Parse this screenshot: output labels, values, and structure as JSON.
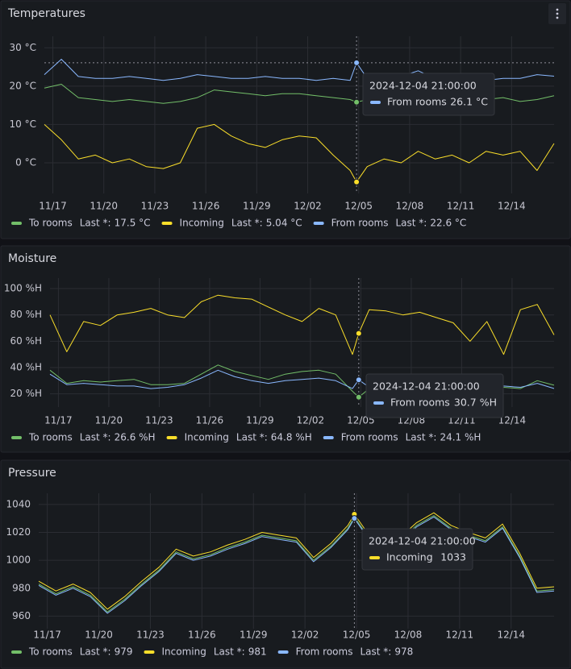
{
  "chart_data": [
    {
      "type": "line",
      "title": "Temperatures",
      "legend_calc": "Last *:",
      "grid": true,
      "x": [
        "2024-11-16 12:00:00",
        "2024-11-17 12:00:00",
        "2024-11-18 12:00:00",
        "2024-11-19 12:00:00",
        "2024-11-20 12:00:00",
        "2024-11-21 12:00:00",
        "2024-11-22 12:00:00",
        "2024-11-23 12:00:00",
        "2024-11-24 12:00:00",
        "2024-11-25 12:00:00",
        "2024-11-26 12:00:00",
        "2024-11-27 12:00:00",
        "2024-11-28 12:00:00",
        "2024-11-29 12:00:00",
        "2024-11-30 12:00:00",
        "2024-12-01 12:00:00",
        "2024-12-02 12:00:00",
        "2024-12-03 12:00:00",
        "2024-12-04 12:00:00",
        "2024-12-04 21:00:00",
        "2024-12-05 12:00:00",
        "2024-12-06 12:00:00",
        "2024-12-07 12:00:00",
        "2024-12-08 12:00:00",
        "2024-12-09 12:00:00",
        "2024-12-10 12:00:00",
        "2024-12-11 12:00:00",
        "2024-12-12 12:00:00",
        "2024-12-13 12:00:00",
        "2024-12-14 12:00:00",
        "2024-12-15 12:00:00",
        "2024-12-16 12:00:00"
      ],
      "xlim": [
        "2024-11-16 12:00:00",
        "2024-12-16 12:00:00"
      ],
      "xticks": [
        {
          "value": "2024-11-17 00:00:00",
          "label": "11/17"
        },
        {
          "value": "2024-11-20 00:00:00",
          "label": "11/20"
        },
        {
          "value": "2024-11-23 00:00:00",
          "label": "11/23"
        },
        {
          "value": "2024-11-26 00:00:00",
          "label": "11/26"
        },
        {
          "value": "2024-11-29 00:00:00",
          "label": "11/29"
        },
        {
          "value": "2024-12-02 00:00:00",
          "label": "12/02"
        },
        {
          "value": "2024-12-05 00:00:00",
          "label": "12/05"
        },
        {
          "value": "2024-12-08 00:00:00",
          "label": "12/08"
        },
        {
          "value": "2024-12-11 00:00:00",
          "label": "12/11"
        },
        {
          "value": "2024-12-14 00:00:00",
          "label": "12/14"
        }
      ],
      "ylim": [
        -8,
        33
      ],
      "yticks": [
        {
          "value": 0,
          "label": "0 °C"
        },
        {
          "value": 10,
          "label": "10 °C"
        },
        {
          "value": 20,
          "label": "20 °C"
        },
        {
          "value": 30,
          "label": "30 °C"
        }
      ],
      "series": [
        {
          "name": "To rooms",
          "color": "#73bf69",
          "last_label": "17.5 °C",
          "values": [
            19.5,
            20.5,
            17,
            16.5,
            16,
            16.5,
            16,
            15.5,
            16,
            17,
            19,
            18.5,
            18,
            17.5,
            18,
            18,
            17.5,
            17,
            16.5,
            15.8,
            16.5,
            16,
            16.5,
            17,
            16,
            16.5,
            17,
            16.5,
            17,
            16,
            16.5,
            17.5
          ]
        },
        {
          "name": "Incoming",
          "color": "#fade2a",
          "last_label": "5.04 °C",
          "values": [
            10,
            6,
            1,
            2,
            0,
            1,
            -1,
            -1.5,
            0,
            9,
            10,
            7,
            5,
            4,
            6,
            7,
            6.5,
            2,
            -2,
            -5,
            -1,
            1,
            0,
            3,
            1,
            2,
            0,
            3,
            2,
            3,
            -2,
            5.04
          ]
        },
        {
          "name": "From rooms",
          "color": "#8ab8ff",
          "last_label": "22.6 °C",
          "values": [
            23,
            27,
            22.5,
            22,
            22,
            22.5,
            22,
            21.5,
            22,
            23,
            22.5,
            22,
            22,
            22.5,
            22,
            22,
            21.5,
            22,
            21.5,
            26.1,
            22,
            22,
            22.5,
            24,
            22,
            22,
            22,
            21.5,
            22,
            22,
            23,
            22.6
          ]
        }
      ],
      "tooltip": {
        "x": "2024-12-04 21:00:00",
        "series": "From rooms",
        "value_label": "26.1 °C"
      }
    },
    {
      "type": "line",
      "title": "Moisture",
      "legend_calc": "Last *:",
      "grid": true,
      "x": [
        "2024-11-16 12:00:00",
        "2024-11-17 12:00:00",
        "2024-11-18 12:00:00",
        "2024-11-19 12:00:00",
        "2024-11-20 12:00:00",
        "2024-11-21 12:00:00",
        "2024-11-22 12:00:00",
        "2024-11-23 12:00:00",
        "2024-11-24 12:00:00",
        "2024-11-25 12:00:00",
        "2024-11-26 12:00:00",
        "2024-11-27 12:00:00",
        "2024-11-28 12:00:00",
        "2024-11-29 12:00:00",
        "2024-11-30 12:00:00",
        "2024-12-01 12:00:00",
        "2024-12-02 12:00:00",
        "2024-12-03 12:00:00",
        "2024-12-04 12:00:00",
        "2024-12-04 21:00:00",
        "2024-12-05 12:00:00",
        "2024-12-06 12:00:00",
        "2024-12-07 12:00:00",
        "2024-12-08 12:00:00",
        "2024-12-09 12:00:00",
        "2024-12-10 12:00:00",
        "2024-12-11 12:00:00",
        "2024-12-12 12:00:00",
        "2024-12-13 12:00:00",
        "2024-12-14 12:00:00",
        "2024-12-15 12:00:00",
        "2024-12-16 12:00:00"
      ],
      "xlim": [
        "2024-11-16 12:00:00",
        "2024-12-16 12:00:00"
      ],
      "xticks": [
        {
          "value": "2024-11-17 00:00:00",
          "label": "11/17"
        },
        {
          "value": "2024-11-20 00:00:00",
          "label": "11/20"
        },
        {
          "value": "2024-11-23 00:00:00",
          "label": "11/23"
        },
        {
          "value": "2024-11-26 00:00:00",
          "label": "11/26"
        },
        {
          "value": "2024-11-29 00:00:00",
          "label": "11/29"
        },
        {
          "value": "2024-12-02 00:00:00",
          "label": "12/02"
        },
        {
          "value": "2024-12-05 00:00:00",
          "label": "12/05"
        },
        {
          "value": "2024-12-08 00:00:00",
          "label": "12/08"
        },
        {
          "value": "2024-12-11 00:00:00",
          "label": "12/11"
        },
        {
          "value": "2024-12-14 00:00:00",
          "label": "12/14"
        }
      ],
      "ylim": [
        10,
        108
      ],
      "yticks": [
        {
          "value": 20,
          "label": "20 %H"
        },
        {
          "value": 40,
          "label": "40 %H"
        },
        {
          "value": 60,
          "label": "60 %H"
        },
        {
          "value": 80,
          "label": "80 %H"
        },
        {
          "value": 100,
          "label": "100 %H"
        }
      ],
      "series": [
        {
          "name": "To rooms",
          "color": "#73bf69",
          "last_label": "26.6 %H",
          "values": [
            38,
            28,
            30,
            29,
            30,
            31,
            27,
            27,
            28,
            35,
            42,
            37,
            34,
            31,
            35,
            37,
            38,
            35,
            22,
            17.5,
            24,
            22,
            24,
            25,
            24,
            24,
            25,
            23,
            25,
            24,
            30,
            26.6
          ]
        },
        {
          "name": "Incoming",
          "color": "#fade2a",
          "last_label": "64.8 %H",
          "values": [
            80,
            52,
            75,
            72,
            80,
            82,
            85,
            80,
            78,
            90,
            95,
            93,
            92,
            86,
            80,
            75,
            85,
            80,
            50,
            66,
            84,
            83,
            80,
            82,
            78,
            74,
            60,
            75,
            50,
            84,
            88,
            64.8
          ]
        },
        {
          "name": "From rooms",
          "color": "#8ab8ff",
          "last_label": "24.1 %H",
          "values": [
            35,
            27,
            28,
            27,
            26,
            26,
            24,
            25,
            27,
            32,
            38,
            33,
            30,
            28,
            30,
            31,
            32,
            30,
            24,
            30.7,
            25,
            24,
            26,
            30,
            25,
            25,
            26,
            24,
            26,
            25,
            28,
            24.1
          ]
        }
      ],
      "tooltip": {
        "x": "2024-12-04 21:00:00",
        "series": "From rooms",
        "value_label": "30.7 %H"
      }
    },
    {
      "type": "line",
      "title": "Pressure",
      "legend_calc": "Last *:",
      "grid": true,
      "x": [
        "2024-11-16 12:00:00",
        "2024-11-17 12:00:00",
        "2024-11-18 12:00:00",
        "2024-11-19 12:00:00",
        "2024-11-20 12:00:00",
        "2024-11-21 12:00:00",
        "2024-11-22 12:00:00",
        "2024-11-23 12:00:00",
        "2024-11-24 12:00:00",
        "2024-11-25 12:00:00",
        "2024-11-26 12:00:00",
        "2024-11-27 12:00:00",
        "2024-11-28 12:00:00",
        "2024-11-29 12:00:00",
        "2024-11-30 12:00:00",
        "2024-12-01 12:00:00",
        "2024-12-02 12:00:00",
        "2024-12-03 12:00:00",
        "2024-12-04 12:00:00",
        "2024-12-04 21:00:00",
        "2024-12-05 12:00:00",
        "2024-12-06 12:00:00",
        "2024-12-07 12:00:00",
        "2024-12-08 12:00:00",
        "2024-12-09 12:00:00",
        "2024-12-10 12:00:00",
        "2024-12-11 12:00:00",
        "2024-12-12 12:00:00",
        "2024-12-13 12:00:00",
        "2024-12-14 12:00:00",
        "2024-12-15 12:00:00",
        "2024-12-16 12:00:00"
      ],
      "xlim": [
        "2024-11-16 12:00:00",
        "2024-12-16 12:00:00"
      ],
      "xticks": [
        {
          "value": "2024-11-17 00:00:00",
          "label": "11/17"
        },
        {
          "value": "2024-11-20 00:00:00",
          "label": "11/20"
        },
        {
          "value": "2024-11-23 00:00:00",
          "label": "11/23"
        },
        {
          "value": "2024-11-26 00:00:00",
          "label": "11/26"
        },
        {
          "value": "2024-11-29 00:00:00",
          "label": "11/29"
        },
        {
          "value": "2024-12-02 00:00:00",
          "label": "12/02"
        },
        {
          "value": "2024-12-05 00:00:00",
          "label": "12/05"
        },
        {
          "value": "2024-12-08 00:00:00",
          "label": "12/08"
        },
        {
          "value": "2024-12-11 00:00:00",
          "label": "12/11"
        },
        {
          "value": "2024-12-14 00:00:00",
          "label": "12/14"
        }
      ],
      "ylim": [
        951,
        1048
      ],
      "yticks": [
        960,
        980,
        1000,
        1020,
        1040
      ],
      "series": [
        {
          "name": "To rooms",
          "color": "#73bf69",
          "last_label": "979",
          "values": [
            983,
            976,
            981,
            975,
            963,
            972,
            983,
            993,
            1006,
            1001,
            1004,
            1009,
            1013,
            1018,
            1016,
            1014,
            1000,
            1010,
            1023,
            1031,
            1020,
            1008,
            1014,
            1025,
            1032,
            1023,
            1018,
            1014,
            1024,
            1003,
            978,
            979
          ]
        },
        {
          "name": "Incoming",
          "color": "#fade2a",
          "last_label": "981",
          "values": [
            985,
            978,
            983,
            977,
            965,
            974,
            985,
            995,
            1008,
            1003,
            1006,
            1011,
            1015,
            1020,
            1018,
            1016,
            1002,
            1012,
            1025,
            1033,
            1022,
            1010,
            1016,
            1027,
            1034,
            1025,
            1020,
            1016,
            1026,
            1005,
            980,
            981
          ]
        },
        {
          "name": "From rooms",
          "color": "#8ab8ff",
          "last_label": "978",
          "values": [
            982,
            975,
            980,
            974,
            962,
            971,
            982,
            992,
            1005,
            1000,
            1003,
            1008,
            1012,
            1017,
            1015,
            1013,
            999,
            1009,
            1022,
            1030,
            1019,
            1007,
            1013,
            1024,
            1031,
            1022,
            1017,
            1013,
            1023,
            1002,
            977,
            978
          ]
        }
      ],
      "tooltip": {
        "x": "2024-12-04 21:00:00",
        "series": "Incoming",
        "value_label": "1033"
      }
    }
  ]
}
